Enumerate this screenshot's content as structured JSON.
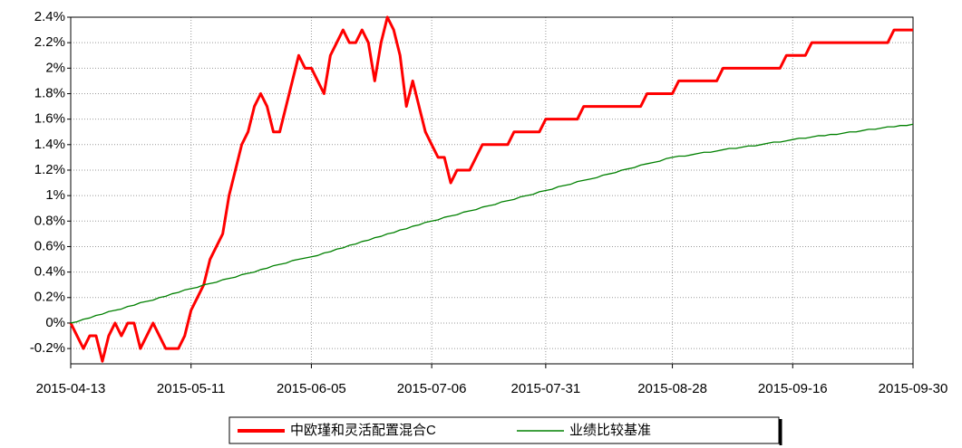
{
  "chart_data": {
    "type": "line",
    "categories": [
      "2015-04-13",
      null,
      null,
      null,
      null,
      null,
      null,
      null,
      null,
      null,
      null,
      null,
      null,
      null,
      null,
      null,
      null,
      null,
      null,
      "2015-05-11",
      null,
      null,
      null,
      null,
      null,
      null,
      null,
      null,
      null,
      null,
      null,
      null,
      null,
      null,
      null,
      null,
      null,
      null,
      "2015-06-05",
      null,
      null,
      null,
      null,
      null,
      null,
      null,
      null,
      null,
      null,
      null,
      null,
      null,
      null,
      null,
      null,
      null,
      null,
      "2015-07-06",
      null,
      null,
      null,
      null,
      null,
      null,
      null,
      null,
      null,
      null,
      null,
      null,
      null,
      null,
      null,
      null,
      null,
      "2015-07-31",
      null,
      null,
      null,
      null,
      null,
      null,
      null,
      null,
      null,
      null,
      null,
      null,
      null,
      null,
      null,
      null,
      null,
      null,
      null,
      "2015-08-28",
      null,
      null,
      null,
      null,
      null,
      null,
      null,
      null,
      null,
      null,
      null,
      null,
      null,
      null,
      null,
      null,
      null,
      null,
      "2015-09-16",
      null,
      null,
      null,
      null,
      null,
      null,
      null,
      null,
      null,
      null,
      null,
      null,
      null,
      null,
      null,
      null,
      null,
      null,
      "2015-09-30"
    ],
    "series": [
      {
        "name": "中欧瑾和灵活配置混合C",
        "color": "#ff0000",
        "values": [
          0,
          -0.1,
          -0.2,
          -0.1,
          -0.1,
          -0.3,
          -0.1,
          0,
          -0.1,
          0,
          0,
          -0.2,
          -0.1,
          0,
          -0.1,
          -0.2,
          -0.2,
          -0.2,
          -0.1,
          0.1,
          0.2,
          0.3,
          0.5,
          0.6,
          0.7,
          1.0,
          1.2,
          1.4,
          1.5,
          1.7,
          1.8,
          1.7,
          1.5,
          1.5,
          1.7,
          1.9,
          2.1,
          2.0,
          2.0,
          1.9,
          1.8,
          2.1,
          2.2,
          2.3,
          2.2,
          2.2,
          2.3,
          2.2,
          1.9,
          2.2,
          2.4,
          2.3,
          2.1,
          1.7,
          1.9,
          1.7,
          1.5,
          1.4,
          1.3,
          1.3,
          1.1,
          1.2,
          1.2,
          1.2,
          1.3,
          1.4,
          1.4,
          1.4,
          1.4,
          1.4,
          1.5,
          1.5,
          1.5,
          1.5,
          1.5,
          1.6,
          1.6,
          1.6,
          1.6,
          1.6,
          1.6,
          1.7,
          1.7,
          1.7,
          1.7,
          1.7,
          1.7,
          1.7,
          1.7,
          1.7,
          1.7,
          1.8,
          1.8,
          1.8,
          1.8,
          1.8,
          1.9,
          1.9,
          1.9,
          1.9,
          1.9,
          1.9,
          1.9,
          2.0,
          2.0,
          2.0,
          2.0,
          2.0,
          2.0,
          2.0,
          2.0,
          2.0,
          2.0,
          2.1,
          2.1,
          2.1,
          2.1,
          2.2,
          2.2,
          2.2,
          2.2,
          2.2,
          2.2,
          2.2,
          2.2,
          2.2,
          2.2,
          2.2,
          2.2,
          2.2,
          2.3,
          2.3,
          2.3,
          2.3
        ]
      },
      {
        "name": "业绩比较基准",
        "color": "#008000",
        "values": [
          0,
          0.01,
          0.03,
          0.04,
          0.06,
          0.07,
          0.09,
          0.1,
          0.11,
          0.13,
          0.14,
          0.16,
          0.17,
          0.18,
          0.2,
          0.21,
          0.23,
          0.24,
          0.26,
          0.27,
          0.28,
          0.3,
          0.31,
          0.32,
          0.34,
          0.35,
          0.36,
          0.38,
          0.39,
          0.4,
          0.42,
          0.43,
          0.45,
          0.46,
          0.47,
          0.49,
          0.5,
          0.51,
          0.52,
          0.53,
          0.55,
          0.56,
          0.58,
          0.59,
          0.61,
          0.62,
          0.64,
          0.65,
          0.67,
          0.68,
          0.7,
          0.71,
          0.73,
          0.74,
          0.76,
          0.77,
          0.79,
          0.8,
          0.81,
          0.83,
          0.84,
          0.85,
          0.87,
          0.88,
          0.89,
          0.91,
          0.92,
          0.93,
          0.95,
          0.96,
          0.97,
          0.99,
          1.0,
          1.01,
          1.03,
          1.04,
          1.05,
          1.07,
          1.08,
          1.09,
          1.11,
          1.12,
          1.13,
          1.14,
          1.16,
          1.17,
          1.18,
          1.2,
          1.21,
          1.22,
          1.24,
          1.25,
          1.26,
          1.27,
          1.29,
          1.3,
          1.31,
          1.31,
          1.32,
          1.33,
          1.34,
          1.34,
          1.35,
          1.36,
          1.37,
          1.37,
          1.38,
          1.39,
          1.39,
          1.4,
          1.41,
          1.42,
          1.42,
          1.43,
          1.44,
          1.45,
          1.45,
          1.46,
          1.47,
          1.47,
          1.48,
          1.48,
          1.49,
          1.5,
          1.5,
          1.51,
          1.52,
          1.52,
          1.53,
          1.54,
          1.54,
          1.55,
          1.55,
          1.56
        ]
      }
    ],
    "ylim": [
      -0.32,
      2.4
    ],
    "yticks": [
      {
        "value": -0.2,
        "label": "-0.2%"
      },
      {
        "value": 0,
        "label": "0%"
      },
      {
        "value": 0.2,
        "label": "0.2%"
      },
      {
        "value": 0.4,
        "label": "0.4%"
      },
      {
        "value": 0.6,
        "label": "0.6%"
      },
      {
        "value": 0.8,
        "label": "0.8%"
      },
      {
        "value": 1,
        "label": "1%"
      },
      {
        "value": 1.2,
        "label": "1.2%"
      },
      {
        "value": 1.4,
        "label": "1.4%"
      },
      {
        "value": 1.6,
        "label": "1.6%"
      },
      {
        "value": 1.8,
        "label": "1.8%"
      },
      {
        "value": 2,
        "label": "2%"
      },
      {
        "value": 2.2,
        "label": "2.2%"
      },
      {
        "value": 2.4,
        "label": "2.4%"
      }
    ],
    "grid": true
  }
}
